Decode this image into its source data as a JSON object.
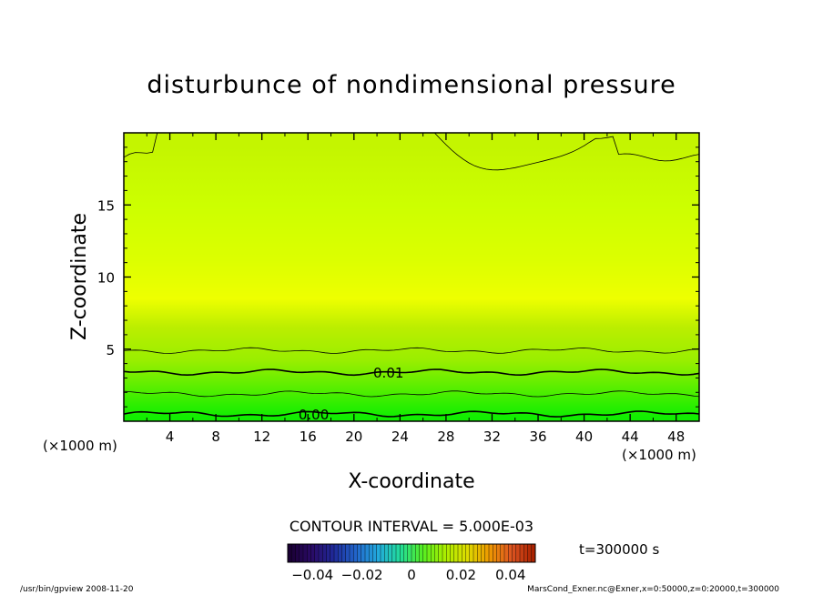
{
  "chart_data": {
    "type": "heatmap",
    "title": "disturbunce of nondimensional pressure",
    "xlabel": "X-coordinate",
    "ylabel": "Z-coordinate",
    "x_unit": "(×1000 m)",
    "y_unit": "(×1000 m)",
    "xlim": [
      0,
      50
    ],
    "ylim": [
      0,
      20
    ],
    "x_ticks": [
      "4",
      "8",
      "12",
      "16",
      "20",
      "24",
      "28",
      "32",
      "36",
      "40",
      "44",
      "48"
    ],
    "y_ticks": [
      "5",
      "10",
      "15"
    ],
    "contour_interval_text": "CONTOUR INTERVAL = 5.000E-03",
    "contour_labels": [
      {
        "text": "0.01",
        "x": 23,
        "z": 3.4
      },
      {
        "text": "0.00",
        "x": 16.5,
        "z": 0.5
      }
    ],
    "contour_lines": [
      {
        "level": 0.0,
        "z": 0.5
      },
      {
        "level": 0.005,
        "z": 1.9
      },
      {
        "level": 0.01,
        "z": 3.4
      },
      {
        "level": 0.015,
        "z": 4.9
      },
      {
        "level": 0.02,
        "z_left": 18.3,
        "z_right": 18.3,
        "z_min": 17.3
      }
    ],
    "field_bands": [
      {
        "z": 0.3,
        "value": 0.0,
        "color": "#11ee00"
      },
      {
        "z": 1.3,
        "value": 0.004,
        "color": "#33ee00"
      },
      {
        "z": 2.7,
        "value": 0.008,
        "color": "#66ee00"
      },
      {
        "z": 4.2,
        "value": 0.012,
        "color": "#99ee00"
      },
      {
        "z": 6.5,
        "value": 0.016,
        "color": "#bbee00"
      },
      {
        "z": 8.5,
        "value": 0.022,
        "color": "#eeff00"
      },
      {
        "z": 11.0,
        "value": 0.019,
        "color": "#ddff00"
      },
      {
        "z": 15.0,
        "value": 0.018,
        "color": "#ccff00"
      },
      {
        "z": 19.0,
        "value": 0.016,
        "color": "#c4f500"
      }
    ],
    "colorbar": {
      "min": -0.05,
      "max": 0.05,
      "tick_labels": [
        "−0.04",
        "−0.02",
        "0",
        "0.02",
        "0.04"
      ],
      "tick_values": [
        -0.04,
        -0.02,
        0,
        0.02,
        0.04
      ],
      "colors": [
        "#1a0033",
        "#2a0a66",
        "#1f2a99",
        "#2266cc",
        "#22aadd",
        "#22dd99",
        "#55ee22",
        "#aaee00",
        "#dddd00",
        "#ee9900",
        "#dd5522",
        "#aa2200"
      ]
    },
    "time_label": "t=300000 s"
  },
  "footer": {
    "left": "/usr/bin/gpview   2008-11-20",
    "right": "MarsCond_Exner.nc@Exner,x=0:50000,z=0:20000,t=300000"
  }
}
